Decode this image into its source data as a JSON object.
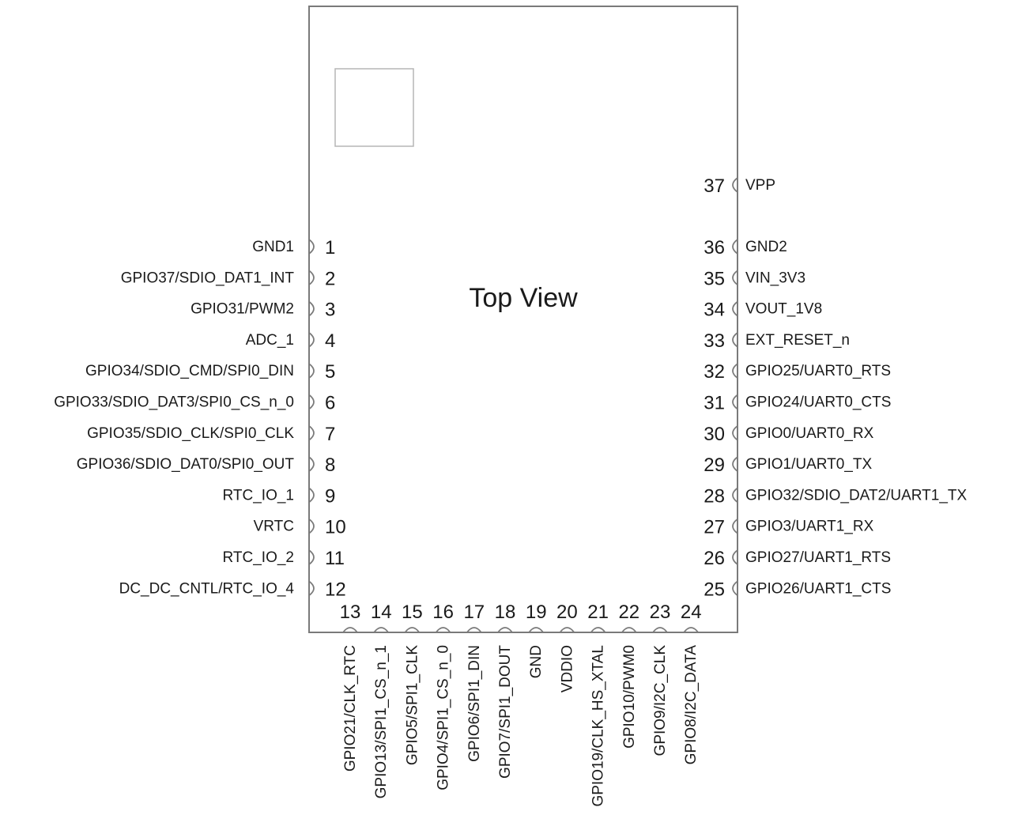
{
  "diagram": {
    "title": "Top View",
    "left_pins": [
      {
        "num": "1",
        "name": "GND1"
      },
      {
        "num": "2",
        "name": "GPIO37/SDIO_DAT1_INT"
      },
      {
        "num": "3",
        "name": "GPIO31/PWM2"
      },
      {
        "num": "4",
        "name": "ADC_1"
      },
      {
        "num": "5",
        "name": "GPIO34/SDIO_CMD/SPI0_DIN"
      },
      {
        "num": "6",
        "name": "GPIO33/SDIO_DAT3/SPI0_CS_n_0"
      },
      {
        "num": "7",
        "name": "GPIO35/SDIO_CLK/SPI0_CLK"
      },
      {
        "num": "8",
        "name": "GPIO36/SDIO_DAT0/SPI0_OUT"
      },
      {
        "num": "9",
        "name": "RTC_IO_1"
      },
      {
        "num": "10",
        "name": "VRTC"
      },
      {
        "num": "11",
        "name": "RTC_IO_2"
      },
      {
        "num": "12",
        "name": "DC_DC_CNTL/RTC_IO_4"
      }
    ],
    "bottom_pins": [
      {
        "num": "13",
        "name": "GPIO21/CLK_RTC"
      },
      {
        "num": "14",
        "name": "GPIO13/SPI1_CS_n_1"
      },
      {
        "num": "15",
        "name": "GPIO5/SPI1_CLK"
      },
      {
        "num": "16",
        "name": "GPIO4/SPI1_CS_n_0"
      },
      {
        "num": "17",
        "name": "GPIO6/SPI1_DIN"
      },
      {
        "num": "18",
        "name": "GPIO7/SPI1_DOUT"
      },
      {
        "num": "19",
        "name": "GND"
      },
      {
        "num": "20",
        "name": "VDDIO"
      },
      {
        "num": "21",
        "name": "GPIO19/CLK_HS_XTAL"
      },
      {
        "num": "22",
        "name": "GPIO10/PWM0"
      },
      {
        "num": "23",
        "name": "GPIO9/I2C_CLK"
      },
      {
        "num": "24",
        "name": "GPIO8/I2C_DATA"
      }
    ],
    "right_pins": [
      {
        "num": "37",
        "name": "VPP"
      },
      {
        "num": "36",
        "name": "GND2"
      },
      {
        "num": "35",
        "name": "VIN_3V3"
      },
      {
        "num": "34",
        "name": "VOUT_1V8"
      },
      {
        "num": "33",
        "name": "EXT_RESET_n"
      },
      {
        "num": "32",
        "name": "GPIO25/UART0_RTS"
      },
      {
        "num": "31",
        "name": "GPIO24/UART0_CTS"
      },
      {
        "num": "30",
        "name": "GPIO0/UART0_RX"
      },
      {
        "num": "29",
        "name": "GPIO1/UART0_TX"
      },
      {
        "num": "28",
        "name": "GPIO32/SDIO_DAT2/UART1_TX"
      },
      {
        "num": "27",
        "name": "GPIO3/UART1_RX"
      },
      {
        "num": "26",
        "name": "GPIO27/UART1_RTS"
      },
      {
        "num": "25",
        "name": "GPIO26/UART1_CTS"
      }
    ]
  }
}
